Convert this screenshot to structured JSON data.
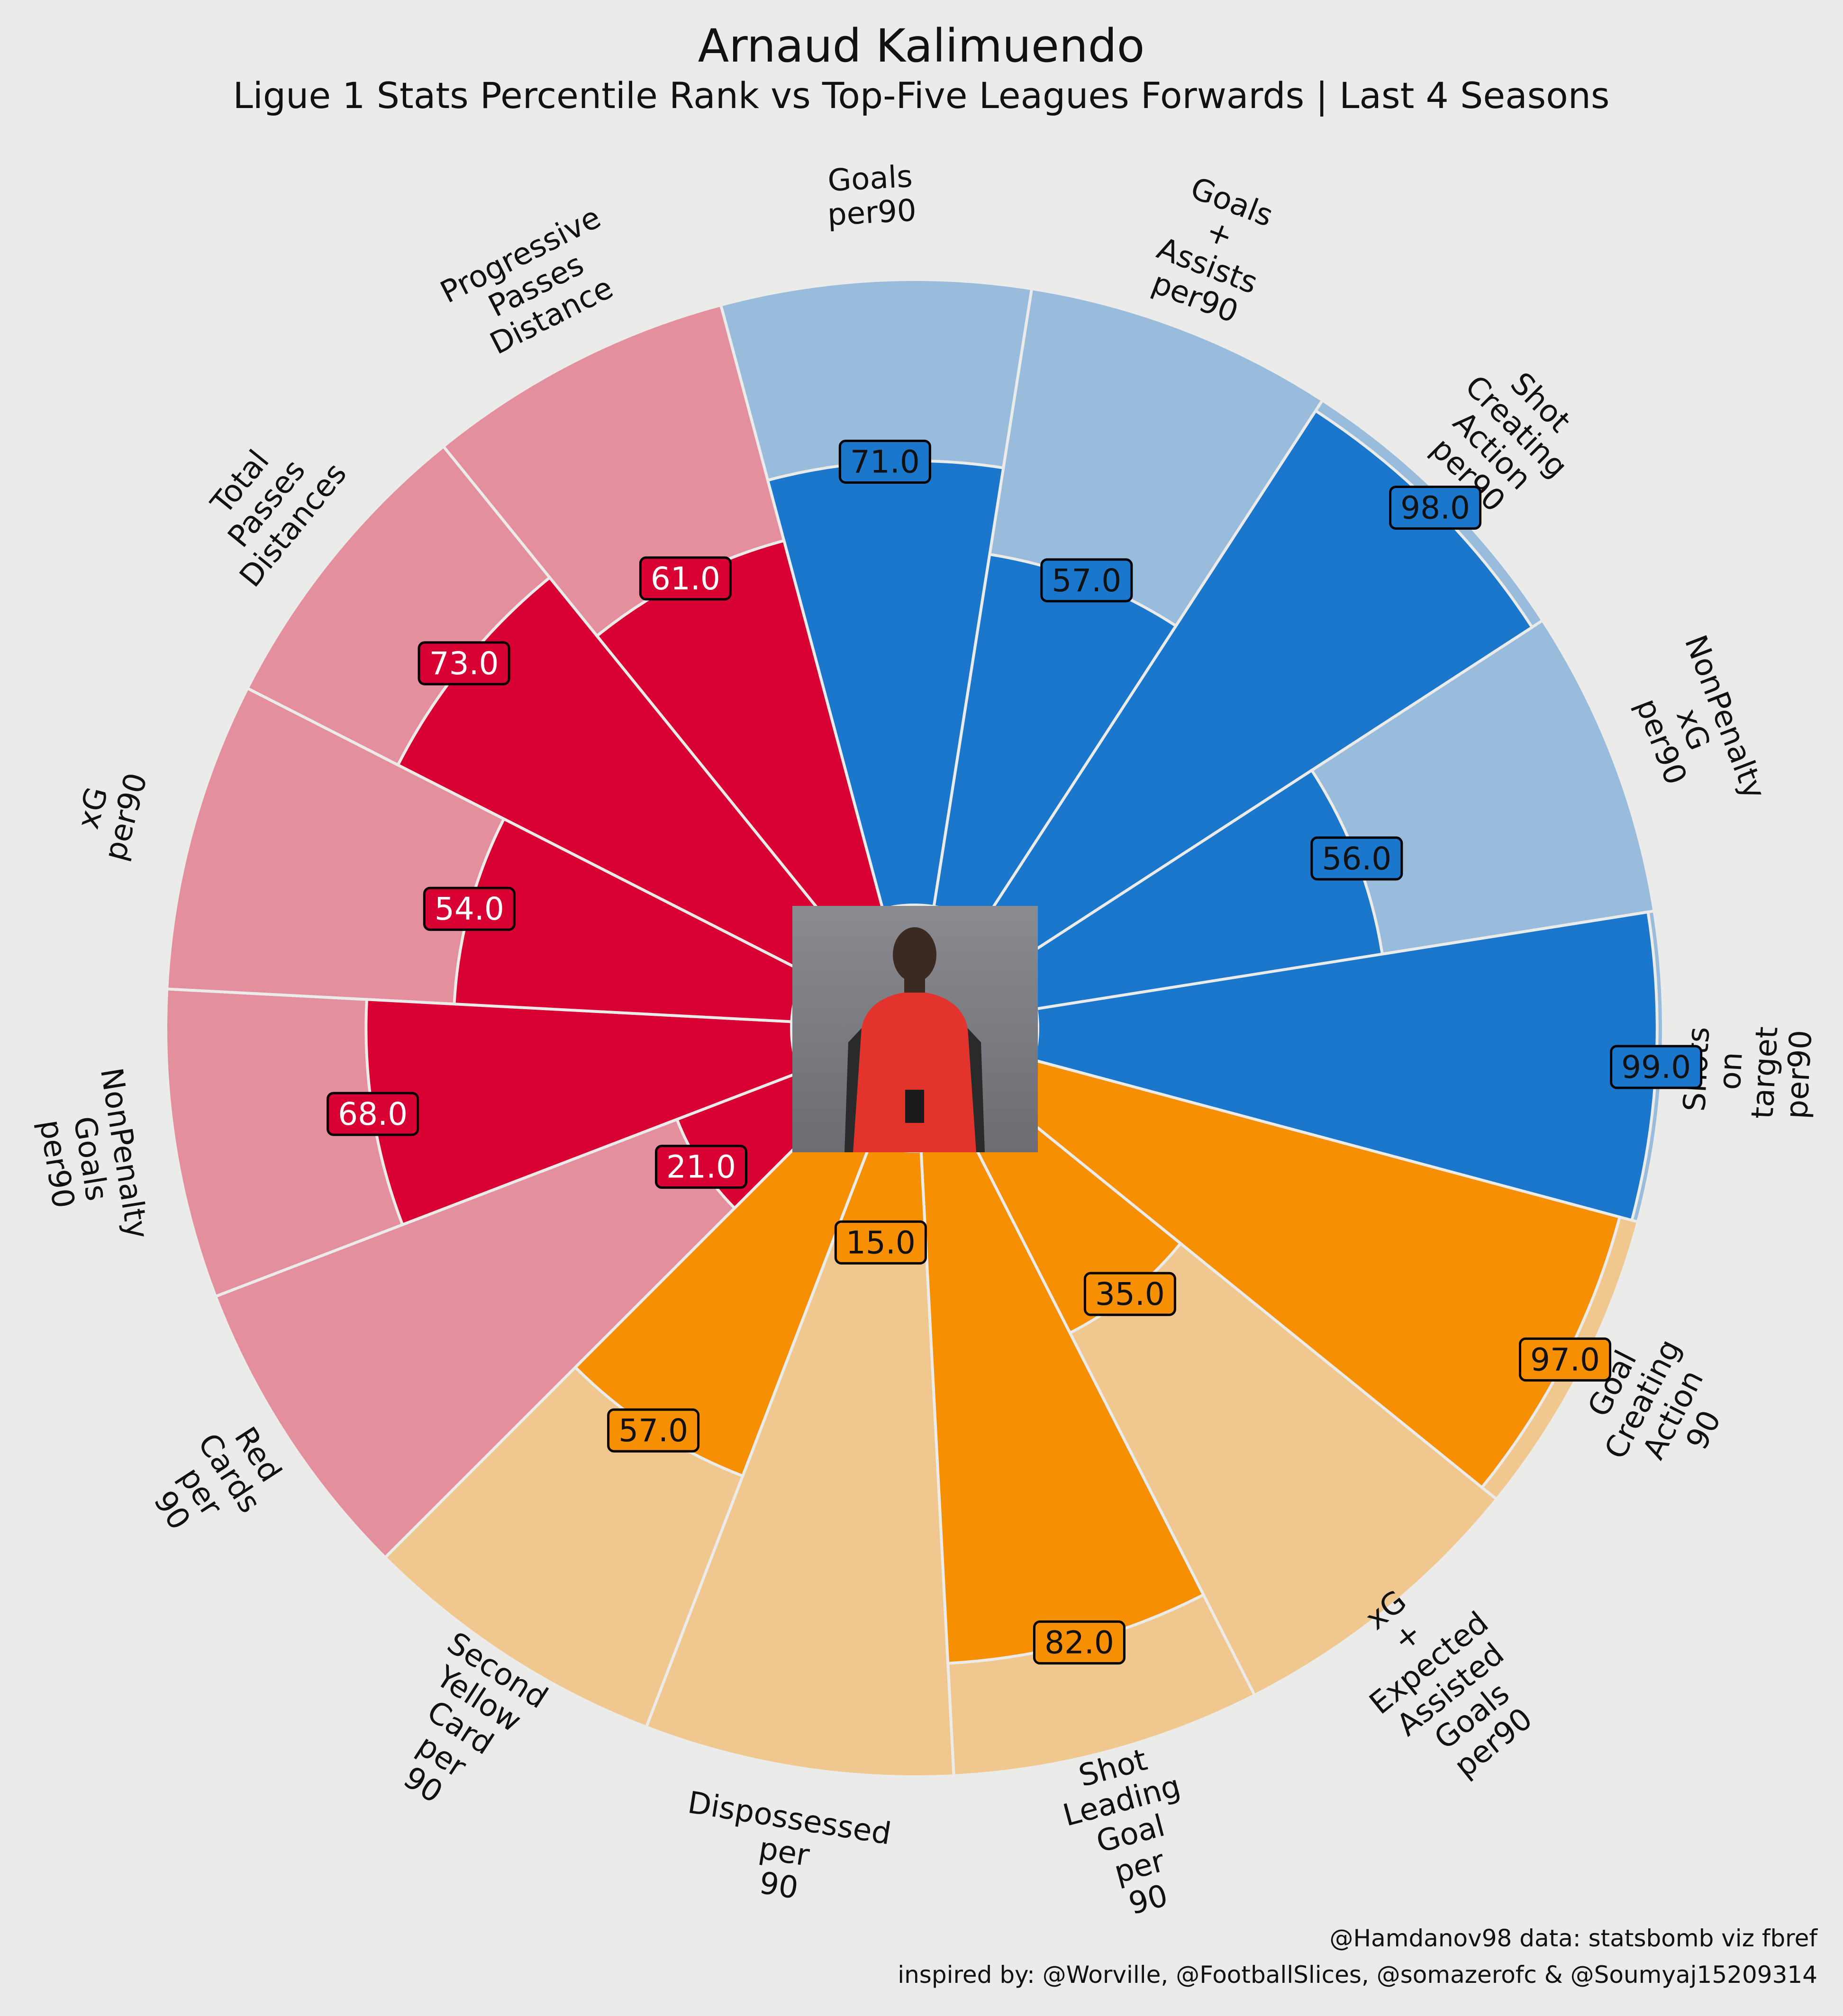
{
  "header": {
    "title": "Arnaud Kalimuendo",
    "subtitle": "Ligue 1 Stats Percentile Rank vs Top-Five Leagues Forwards | Last 4 Seasons"
  },
  "credits": {
    "line1": "@Hamdanov98 data: statsbomb viz fbref",
    "line2": "inspired by: @Worville, @FootballSlices, @somazerofc & @Soumyaj15209314"
  },
  "colors": {
    "background": "#ebebe9",
    "attacking": "#1b77cc",
    "attacking_light": "#99bcdd",
    "possession": "#f68f01",
    "possession_light": "#f0c78e",
    "defending": "#d80032",
    "defending_light": "#e48f9d"
  },
  "chart_data": {
    "type": "polar_bar",
    "title": "Arnaud Kalimuendo",
    "subtitle": "Ligue 1 Stats Percentile Rank vs Top-Five Leagues Forwards | Last 4 Seasons",
    "range": [
      0,
      100
    ],
    "segments": [
      {
        "label": "Goals\nper90",
        "value": 71,
        "group": "attacking"
      },
      {
        "label": "Goals\n+\nAssists\nper90",
        "value": 57,
        "group": "attacking"
      },
      {
        "label": "Shot\nCreating\nAction\nper90",
        "value": 98,
        "group": "attacking"
      },
      {
        "label": "NonPenalty\nxG\nper90",
        "value": 56,
        "group": "attacking"
      },
      {
        "label": "Shots\non\ntarget\nper90",
        "value": 99,
        "group": "attacking"
      },
      {
        "label": "Goal\nCreating\nAction\n90",
        "value": 97,
        "group": "possession"
      },
      {
        "label": "xG\n+\nExpected\nAssisted\nGoals\nper90",
        "value": 35,
        "group": "possession"
      },
      {
        "label": "Shot\nLeading\nGoal\nper\n90",
        "value": 82,
        "group": "possession"
      },
      {
        "label": "Dispossessed\nper\n90",
        "value": 15,
        "group": "possession"
      },
      {
        "label": "Second\nYellow\nCard\nper\n90",
        "value": 57,
        "group": "possession"
      },
      {
        "label": "Red\nCards\nper\n90",
        "value": 21,
        "group": "defending"
      },
      {
        "label": "NonPenalty\nGoals\nper90",
        "value": 68,
        "group": "defending"
      },
      {
        "label": "xG\nper90",
        "value": 54,
        "group": "defending"
      },
      {
        "label": "Total\nPasses\nDistances",
        "value": 73,
        "group": "defending"
      },
      {
        "label": "Progressive\nPasses\nDistance",
        "value": 61,
        "group": "defending"
      }
    ]
  }
}
